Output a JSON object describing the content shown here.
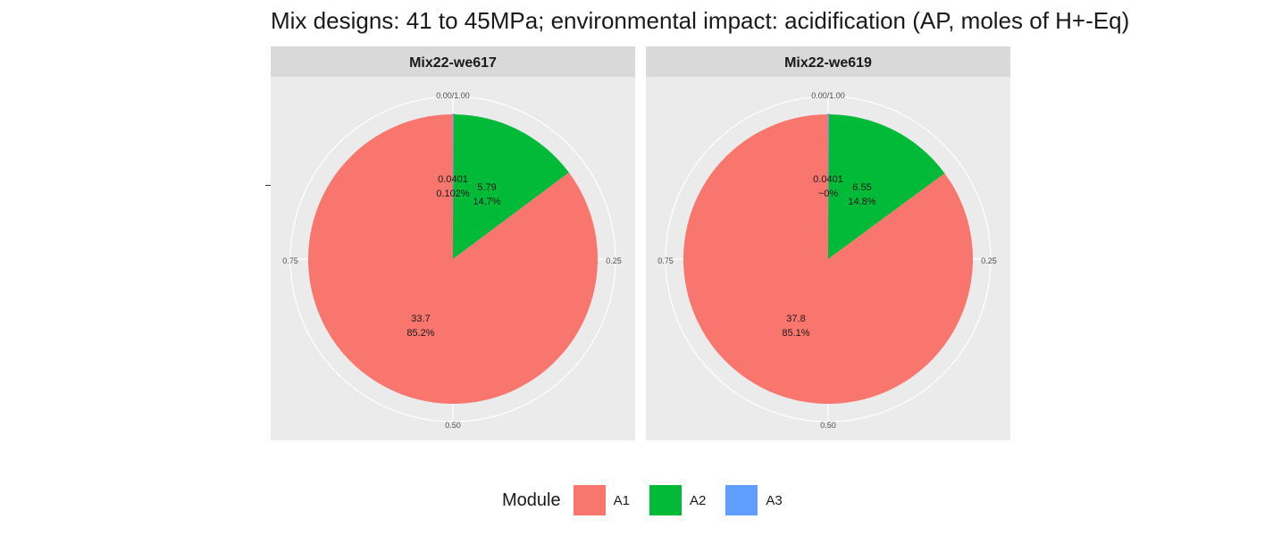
{
  "chart_data": {
    "type": "pie",
    "title": "Mix designs: 41 to 45MPa; environmental impact: acidification (AP, moles of H+-Eq)",
    "angle_ticks": [
      "0.00/1.00",
      "0.25",
      "0.50",
      "0.75"
    ],
    "legend": {
      "title": "Module",
      "placement": "bottom",
      "entries": [
        "A1",
        "A2",
        "A3"
      ]
    },
    "colors": {
      "A1": "#F8766D",
      "A2": "#00BA38",
      "A3": "#619CFF"
    },
    "panels": [
      {
        "name": "Mix22-we617",
        "slices": [
          {
            "module": "A1",
            "value": 33.7,
            "value_label": "33.7",
            "pct_label": "85.2%",
            "fraction": 0.852
          },
          {
            "module": "A2",
            "value": 5.79,
            "value_label": "5.79",
            "pct_label": "14.7%",
            "fraction": 0.147
          },
          {
            "module": "A3",
            "value": 0.0401,
            "value_label": "0.0401",
            "pct_label": "0.102%",
            "fraction": 0.00102
          }
        ]
      },
      {
        "name": "Mix22-we619",
        "slices": [
          {
            "module": "A1",
            "value": 37.8,
            "value_label": "37.8",
            "pct_label": "85.1%",
            "fraction": 0.851
          },
          {
            "module": "A2",
            "value": 6.55,
            "value_label": "6.55",
            "pct_label": "14.8%",
            "fraction": 0.148
          },
          {
            "module": "A3",
            "value": 0.0401,
            "value_label": "0.0401",
            "pct_label": "~0%",
            "fraction": 0.001
          }
        ]
      }
    ]
  }
}
